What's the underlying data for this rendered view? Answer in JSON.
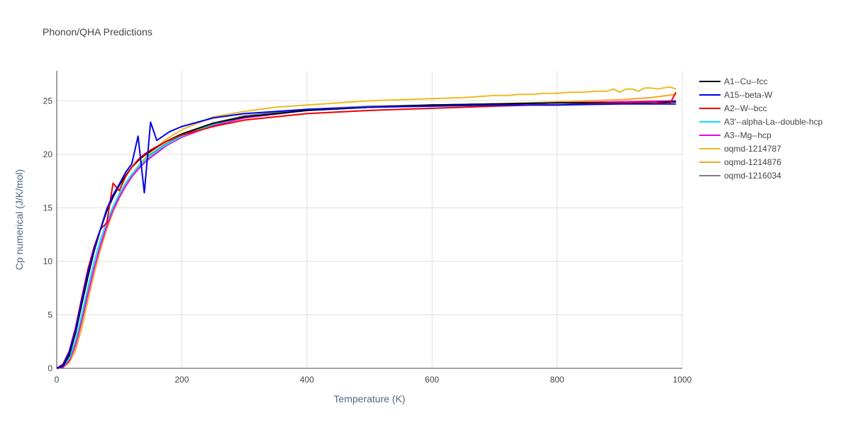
{
  "chart_data": {
    "type": "line",
    "title": "Phonon/QHA Predictions",
    "xlabel": "Temperature (K)",
    "ylabel": "Cp numerical (J/K/mol)",
    "xlim": [
      0,
      1000
    ],
    "ylim": [
      0,
      27.8
    ],
    "xticks": [
      0,
      200,
      400,
      600,
      800,
      1000
    ],
    "yticks": [
      0,
      5,
      10,
      15,
      20,
      25
    ],
    "grid": true,
    "legend_position": "right",
    "series": [
      {
        "name": "A1--Cu--fcc",
        "color": "#000000",
        "x": [
          0,
          10,
          20,
          30,
          40,
          50,
          60,
          70,
          80,
          90,
          100,
          110,
          120,
          130,
          140,
          150,
          175,
          200,
          250,
          300,
          400,
          500,
          600,
          700,
          800,
          900,
          990
        ],
        "y": [
          0,
          0.2,
          1.2,
          3.3,
          6.0,
          8.6,
          11.0,
          13.0,
          14.7,
          16.0,
          17.1,
          18.0,
          18.8,
          19.4,
          19.9,
          20.3,
          21.2,
          21.9,
          22.9,
          23.5,
          24.1,
          24.4,
          24.6,
          24.7,
          24.8,
          24.8,
          24.9
        ]
      },
      {
        "name": "A15--beta-W",
        "color": "#0000ee",
        "x": [
          0,
          10,
          20,
          30,
          40,
          50,
          60,
          70,
          80,
          90,
          100,
          110,
          120,
          130,
          140,
          150,
          160,
          170,
          180,
          200,
          250,
          300,
          400,
          500,
          600,
          700,
          800,
          900,
          990
        ],
        "y": [
          0,
          0.3,
          1.5,
          3.6,
          6.4,
          9.0,
          11.2,
          13.0,
          14.9,
          16.2,
          17.2,
          18.3,
          19.1,
          21.7,
          16.4,
          23.0,
          21.3,
          21.7,
          22.1,
          22.6,
          23.4,
          23.8,
          24.2,
          24.4,
          24.5,
          24.6,
          24.6,
          24.7,
          24.7
        ]
      },
      {
        "name": "A2--W--bcc",
        "color": "#ee0000",
        "x": [
          0,
          10,
          20,
          30,
          40,
          50,
          60,
          70,
          80,
          90,
          100,
          110,
          120,
          130,
          140,
          150,
          175,
          200,
          250,
          300,
          400,
          500,
          600,
          700,
          760,
          800,
          900,
          950,
          980,
          990
        ],
        "y": [
          0,
          0.4,
          1.6,
          3.8,
          6.6,
          9.3,
          11.4,
          13.0,
          13.6,
          17.3,
          16.6,
          17.9,
          18.8,
          19.5,
          20.0,
          20.4,
          21.2,
          21.8,
          22.6,
          23.2,
          23.8,
          24.1,
          24.3,
          24.5,
          24.6,
          24.6,
          24.8,
          24.9,
          24.7,
          25.8
        ]
      },
      {
        "name": "A3'--alpha-La--double-hcp",
        "color": "#00e5ee",
        "x": [
          0,
          10,
          20,
          30,
          40,
          50,
          60,
          70,
          80,
          90,
          100,
          110,
          120,
          130,
          140,
          150,
          175,
          200,
          250,
          300,
          400,
          500,
          600,
          700,
          800,
          900,
          990
        ],
        "y": [
          0,
          0.2,
          0.9,
          2.6,
          5.0,
          7.6,
          10.0,
          12.0,
          13.7,
          15.1,
          16.3,
          17.3,
          18.1,
          18.8,
          19.4,
          19.9,
          20.9,
          21.7,
          22.8,
          23.5,
          24.1,
          24.4,
          24.6,
          24.7,
          24.8,
          24.8,
          24.9
        ]
      },
      {
        "name": "A3--Mg--hcp",
        "color": "#ee00ee",
        "x": [
          0,
          10,
          20,
          30,
          40,
          50,
          60,
          70,
          80,
          90,
          100,
          110,
          120,
          130,
          140,
          150,
          175,
          200,
          250,
          300,
          400,
          500,
          600,
          700,
          800,
          900,
          990
        ],
        "y": [
          0,
          0.1,
          0.7,
          2.2,
          4.5,
          7.0,
          9.4,
          11.5,
          13.3,
          14.8,
          16.0,
          17.0,
          17.9,
          18.6,
          19.2,
          19.7,
          20.8,
          21.6,
          22.7,
          23.4,
          24.1,
          24.4,
          24.6,
          24.7,
          24.8,
          24.9,
          25.0
        ]
      },
      {
        "name": "oqmd-1214787",
        "color": "#ebbc22",
        "x": [
          0,
          10,
          20,
          30,
          40,
          50,
          60,
          70,
          80,
          90,
          100,
          110,
          120,
          130,
          140,
          150,
          175,
          200,
          250,
          300,
          350,
          400,
          450,
          500,
          550,
          600,
          650,
          700,
          720,
          740,
          760,
          780,
          800,
          820,
          840,
          860,
          880,
          890,
          900,
          910,
          920,
          930,
          940,
          950,
          960,
          970,
          980,
          990
        ],
        "y": [
          0,
          0.1,
          0.6,
          2.0,
          4.2,
          6.8,
          9.2,
          11.4,
          13.2,
          14.8,
          16.1,
          17.2,
          18.1,
          18.9,
          19.6,
          20.2,
          21.4,
          22.3,
          23.5,
          24.0,
          24.4,
          24.6,
          24.8,
          25.0,
          25.1,
          25.2,
          25.3,
          25.5,
          25.5,
          25.6,
          25.6,
          25.7,
          25.7,
          25.8,
          25.8,
          25.9,
          25.9,
          26.1,
          25.8,
          26.1,
          26.1,
          25.9,
          26.2,
          26.2,
          26.1,
          26.2,
          26.3,
          26.1
        ]
      },
      {
        "name": "oqmd-1214876",
        "color": "#f5a623",
        "x": [
          0,
          10,
          20,
          30,
          40,
          50,
          60,
          70,
          80,
          90,
          100,
          110,
          120,
          130,
          140,
          150,
          175,
          200,
          250,
          300,
          400,
          500,
          600,
          700,
          800,
          850,
          900,
          950,
          990
        ],
        "y": [
          0,
          0.1,
          0.5,
          1.7,
          3.8,
          6.4,
          8.9,
          11.1,
          13.0,
          14.6,
          15.9,
          17.0,
          17.9,
          18.6,
          19.2,
          19.7,
          20.8,
          21.7,
          22.8,
          23.5,
          24.1,
          24.4,
          24.6,
          24.7,
          24.9,
          25.0,
          25.1,
          25.3,
          25.6
        ]
      },
      {
        "name": "oqmd-1216034",
        "color": "#808080",
        "x": [
          0,
          10,
          20,
          30,
          40,
          50,
          60,
          70,
          80,
          90,
          100,
          110,
          120,
          130,
          140,
          150,
          175,
          200,
          250,
          300,
          400,
          500,
          600,
          700,
          800,
          900,
          990
        ],
        "y": [
          0,
          0.1,
          0.6,
          1.9,
          4.1,
          6.7,
          9.2,
          11.4,
          13.3,
          14.9,
          16.2,
          17.2,
          18.1,
          18.8,
          19.4,
          20.0,
          21.0,
          21.8,
          22.9,
          23.6,
          24.2,
          24.5,
          24.6,
          24.7,
          24.8,
          24.9,
          24.9
        ]
      }
    ]
  }
}
